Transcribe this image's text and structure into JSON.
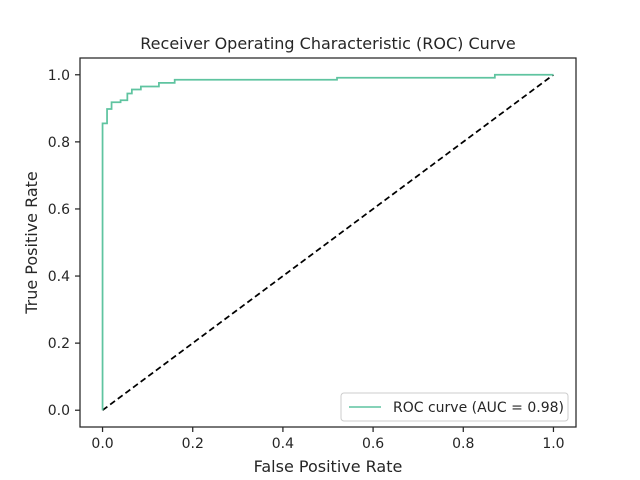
{
  "chart_data": {
    "type": "line",
    "title": "Receiver Operating Characteristic (ROC) Curve",
    "xlabel": "False Positive Rate",
    "ylabel": "True Positive Rate",
    "xlim": [
      -0.05,
      1.05
    ],
    "ylim": [
      -0.05,
      1.05
    ],
    "xticks": [
      0.0,
      0.2,
      0.4,
      0.6,
      0.8,
      1.0
    ],
    "yticks": [
      0.0,
      0.2,
      0.4,
      0.6,
      0.8,
      1.0
    ],
    "xtick_labels": [
      "0.0",
      "0.2",
      "0.4",
      "0.6",
      "0.8",
      "1.0"
    ],
    "ytick_labels": [
      "0.0",
      "0.2",
      "0.4",
      "0.6",
      "0.8",
      "1.0"
    ],
    "grid": false,
    "legend_position": "lower-right",
    "series": [
      {
        "name": "ROC curve (AUC = 0.98)",
        "color": "#5fc4a0",
        "style": "step",
        "x": [
          0.0,
          0.0,
          0.01,
          0.01,
          0.02,
          0.02,
          0.04,
          0.04,
          0.055,
          0.055,
          0.065,
          0.065,
          0.085,
          0.085,
          0.125,
          0.125,
          0.16,
          0.16,
          0.52,
          0.52,
          0.87,
          0.87,
          1.0
        ],
        "y": [
          0.0,
          0.855,
          0.855,
          0.898,
          0.898,
          0.918,
          0.918,
          0.924,
          0.924,
          0.944,
          0.944,
          0.956,
          0.956,
          0.965,
          0.965,
          0.976,
          0.976,
          0.985,
          0.985,
          0.991,
          0.991,
          1.0,
          1.0
        ]
      },
      {
        "name": "",
        "color": "#000000",
        "style": "dashed",
        "x": [
          0.0,
          1.0
        ],
        "y": [
          0.0,
          1.0
        ]
      }
    ]
  }
}
